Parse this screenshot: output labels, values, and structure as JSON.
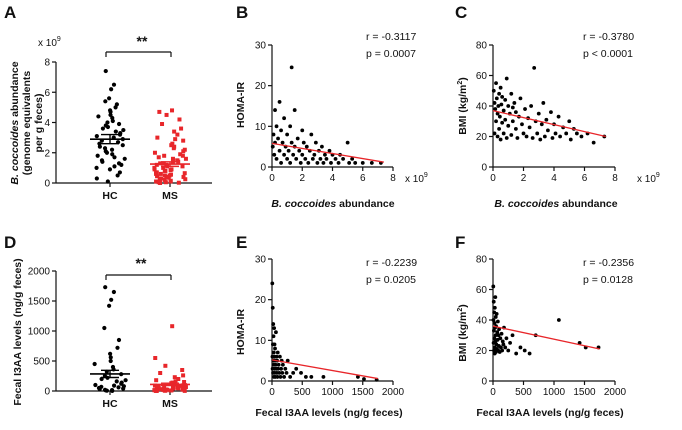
{
  "colors": {
    "hc": "#000000",
    "ms": "#e8262a",
    "fit": "#e8262a",
    "axis": "#111111"
  },
  "panels": {
    "A": {
      "letter": "A",
      "sig": "**",
      "exponent_base": "x 10",
      "exponent_power": "9",
      "ylabel_parts": [
        "B. coccoides",
        " abundance"
      ],
      "ylabel_line2": "(genome equivalents",
      "ylabel_line3": "per g feces)"
    },
    "B": {
      "letter": "B",
      "r": "r = -0.3117",
      "p": "p = 0.0007",
      "exponent_base": "x 10",
      "exponent_power": "9",
      "xlabel_parts": [
        "B. coccoides",
        " abundance"
      ],
      "ylabel": "HOMA-IR"
    },
    "C": {
      "letter": "C",
      "r": "r = -0.3780",
      "p": "p < 0.0001",
      "exponent_base": "x 10",
      "exponent_power": "9",
      "xlabel_parts": [
        "B. coccoides",
        " abundance"
      ],
      "ylabel_base": "BMI (kg/m",
      "ylabel_power": "2",
      "ylabel_end": ")"
    },
    "D": {
      "letter": "D",
      "sig": "**",
      "ylabel": "Fecal I3AA levels (ng/g feces)"
    },
    "E": {
      "letter": "E",
      "r": "r = -0.2239",
      "p": "p = 0.0205",
      "xlabel": "Fecal I3AA levels (ng/g feces)",
      "ylabel": "HOMA-IR"
    },
    "F": {
      "letter": "F",
      "r": "r = -0.2356",
      "p": "p = 0.0128",
      "xlabel": "Fecal I3AA levels (ng/g feces)",
      "ylabel_base": "BMI (kg/m",
      "ylabel_power": "2",
      "ylabel_end": ")"
    }
  },
  "chart_data": [
    {
      "id": "A",
      "type": "scatter",
      "categories": [
        "HC",
        "MS"
      ],
      "ylim": [
        0,
        8
      ],
      "yticks": [
        0,
        2,
        4,
        6,
        8
      ],
      "y_scale_note": "x 10^9",
      "ylabel": "B. coccoides abundance (genome equivalents per g feces)",
      "significance": "**",
      "series": [
        {
          "name": "HC",
          "mean": 2.9,
          "sem": 0.3,
          "values": [
            7.4,
            6.5,
            6.2,
            5.6,
            5.4,
            5.2,
            5.0,
            4.8,
            4.7,
            4.5,
            4.4,
            4.3,
            4.1,
            4.0,
            3.9,
            3.8,
            3.7,
            3.6,
            3.5,
            3.4,
            3.3,
            3.2,
            3.1,
            3.0,
            2.9,
            2.8,
            2.7,
            2.6,
            2.5,
            2.4,
            2.3,
            2.2,
            2.1,
            2.0,
            1.9,
            1.8,
            1.7,
            1.6,
            1.5,
            1.4,
            1.3,
            1.2,
            1.1,
            1.0,
            0.9,
            0.7,
            0.5,
            0.3,
            0.1
          ]
        },
        {
          "name": "MS",
          "mean": 1.25,
          "sem": 0.15,
          "values": [
            4.8,
            4.7,
            4.5,
            4.2,
            3.9,
            3.6,
            3.4,
            3.2,
            3.0,
            2.9,
            2.8,
            2.6,
            2.5,
            2.4,
            2.3,
            2.2,
            2.1,
            2.0,
            1.9,
            1.8,
            1.8,
            1.7,
            1.6,
            1.6,
            1.5,
            1.5,
            1.4,
            1.4,
            1.3,
            1.3,
            1.2,
            1.2,
            1.1,
            1.1,
            1.0,
            1.0,
            0.9,
            0.9,
            0.85,
            0.8,
            0.8,
            0.7,
            0.7,
            0.65,
            0.6,
            0.6,
            0.55,
            0.5,
            0.5,
            0.45,
            0.4,
            0.4,
            0.35,
            0.3,
            0.3,
            0.25,
            0.2,
            0.2,
            0.15,
            0.1,
            0.1,
            0.05,
            0.05,
            0.02,
            0.0
          ]
        }
      ]
    },
    {
      "id": "B",
      "type": "scatter",
      "xlabel": "B. coccoides abundance",
      "ylabel": "HOMA-IR",
      "xlim": [
        0,
        8
      ],
      "xticks": [
        0,
        2,
        4,
        6,
        8
      ],
      "x_scale_note": "x 10^9",
      "ylim": [
        0,
        30
      ],
      "yticks": [
        0,
        10,
        20,
        30
      ],
      "fit": {
        "x": [
          0,
          7.4
        ],
        "y": [
          5.8,
          1.2
        ]
      },
      "r": -0.3117,
      "p": 0.0007,
      "points": [
        [
          0.05,
          5
        ],
        [
          0.1,
          8
        ],
        [
          0.15,
          3
        ],
        [
          0.2,
          14
        ],
        [
          0.2,
          6
        ],
        [
          0.3,
          10
        ],
        [
          0.3,
          2
        ],
        [
          0.4,
          7
        ],
        [
          0.5,
          16
        ],
        [
          0.5,
          4
        ],
        [
          0.6,
          9
        ],
        [
          0.6,
          1
        ],
        [
          0.7,
          6
        ],
        [
          0.8,
          3
        ],
        [
          0.8,
          12
        ],
        [
          0.9,
          5
        ],
        [
          1.0,
          8
        ],
        [
          1.0,
          2
        ],
        [
          1.1,
          4
        ],
        [
          1.2,
          10
        ],
        [
          1.2,
          1
        ],
        [
          1.3,
          24.5
        ],
        [
          1.3,
          6
        ],
        [
          1.4,
          3
        ],
        [
          1.5,
          5
        ],
        [
          1.5,
          14
        ],
        [
          1.6,
          2
        ],
        [
          1.7,
          7
        ],
        [
          1.8,
          4
        ],
        [
          1.9,
          1
        ],
        [
          2.0,
          9
        ],
        [
          2.0,
          3
        ],
        [
          2.1,
          6
        ],
        [
          2.2,
          2
        ],
        [
          2.3,
          5
        ],
        [
          2.4,
          1
        ],
        [
          2.5,
          4
        ],
        [
          2.6,
          8
        ],
        [
          2.7,
          2
        ],
        [
          2.8,
          3
        ],
        [
          2.9,
          6
        ],
        [
          3.0,
          1
        ],
        [
          3.1,
          4
        ],
        [
          3.2,
          2
        ],
        [
          3.3,
          5
        ],
        [
          3.4,
          1
        ],
        [
          3.5,
          3
        ],
        [
          3.6,
          2
        ],
        [
          3.8,
          4
        ],
        [
          3.9,
          1
        ],
        [
          4.0,
          3
        ],
        [
          4.2,
          2
        ],
        [
          4.4,
          1
        ],
        [
          4.5,
          3
        ],
        [
          4.7,
          2
        ],
        [
          5.0,
          6
        ],
        [
          5.1,
          1
        ],
        [
          5.3,
          2
        ],
        [
          5.5,
          1
        ],
        [
          6.0,
          1
        ],
        [
          6.6,
          1
        ],
        [
          7.2,
          1
        ]
      ]
    },
    {
      "id": "C",
      "type": "scatter",
      "xlabel": "B. coccoides abundance",
      "ylabel": "BMI (kg/m2)",
      "xlim": [
        0,
        8
      ],
      "xticks": [
        0,
        2,
        4,
        6,
        8
      ],
      "x_scale_note": "x 10^9",
      "ylim": [
        0,
        80
      ],
      "yticks": [
        0,
        20,
        40,
        60,
        80
      ],
      "fit": {
        "x": [
          0,
          7.4
        ],
        "y": [
          37,
          20
        ]
      },
      "r": -0.378,
      "p": "< 0.0001",
      "points": [
        [
          0.05,
          50
        ],
        [
          0.1,
          42
        ],
        [
          0.1,
          22
        ],
        [
          0.15,
          38
        ],
        [
          0.2,
          55
        ],
        [
          0.2,
          30
        ],
        [
          0.25,
          45
        ],
        [
          0.3,
          35
        ],
        [
          0.3,
          20
        ],
        [
          0.35,
          40
        ],
        [
          0.4,
          48
        ],
        [
          0.4,
          25
        ],
        [
          0.45,
          33
        ],
        [
          0.5,
          52
        ],
        [
          0.5,
          18
        ],
        [
          0.55,
          41
        ],
        [
          0.6,
          29
        ],
        [
          0.6,
          46
        ],
        [
          0.7,
          37
        ],
        [
          0.7,
          22
        ],
        [
          0.8,
          44
        ],
        [
          0.8,
          31
        ],
        [
          0.9,
          58
        ],
        [
          0.9,
          19
        ],
        [
          1.0,
          40
        ],
        [
          1.0,
          27
        ],
        [
          1.1,
          35
        ],
        [
          1.2,
          48
        ],
        [
          1.2,
          21
        ],
        [
          1.3,
          39
        ],
        [
          1.3,
          30
        ],
        [
          1.4,
          42
        ],
        [
          1.5,
          25
        ],
        [
          1.5,
          36
        ],
        [
          1.6,
          19
        ],
        [
          1.7,
          33
        ],
        [
          1.8,
          45
        ],
        [
          1.9,
          28
        ],
        [
          2.0,
          22
        ],
        [
          2.1,
          38
        ],
        [
          2.2,
          20
        ],
        [
          2.3,
          32
        ],
        [
          2.4,
          26
        ],
        [
          2.5,
          40
        ],
        [
          2.6,
          19
        ],
        [
          2.7,
          65
        ],
        [
          2.8,
          30
        ],
        [
          2.9,
          22
        ],
        [
          3.0,
          35
        ],
        [
          3.1,
          18
        ],
        [
          3.2,
          28
        ],
        [
          3.3,
          42
        ],
        [
          3.4,
          20
        ],
        [
          3.5,
          31
        ],
        [
          3.6,
          24
        ],
        [
          3.8,
          36
        ],
        [
          3.9,
          19
        ],
        [
          4.0,
          28
        ],
        [
          4.1,
          22
        ],
        [
          4.3,
          33
        ],
        [
          4.4,
          20
        ],
        [
          4.6,
          26
        ],
        [
          4.8,
          22
        ],
        [
          5.0,
          30
        ],
        [
          5.1,
          18
        ],
        [
          5.3,
          25
        ],
        [
          5.5,
          22
        ],
        [
          5.8,
          20
        ],
        [
          6.2,
          22
        ],
        [
          6.6,
          16
        ],
        [
          7.3,
          20
        ]
      ]
    },
    {
      "id": "D",
      "type": "scatter",
      "categories": [
        "HC",
        "MS"
      ],
      "ylim": [
        0,
        2000
      ],
      "yticks": [
        0,
        500,
        1000,
        1500,
        2000
      ],
      "ylabel": "Fecal I3AA levels (ng/g feces)",
      "significance": "**",
      "series": [
        {
          "name": "HC",
          "mean": 285,
          "sem": 60,
          "values": [
            1730,
            1650,
            1520,
            1420,
            1050,
            850,
            720,
            620,
            560,
            500,
            450,
            400,
            360,
            320,
            280,
            250,
            220,
            200,
            180,
            160,
            140,
            120,
            100,
            90,
            80,
            70,
            60,
            50,
            40,
            30,
            20,
            15,
            10,
            5,
            2
          ]
        },
        {
          "name": "MS",
          "mean": 110,
          "sem": 20,
          "values": [
            1080,
            550,
            420,
            350,
            300,
            260,
            230,
            200,
            180,
            160,
            150,
            140,
            130,
            120,
            110,
            100,
            95,
            90,
            85,
            80,
            75,
            70,
            65,
            60,
            55,
            50,
            45,
            40,
            35,
            30,
            28,
            25,
            22,
            20,
            18,
            15,
            12,
            10,
            8,
            6,
            5,
            4,
            3,
            2,
            1
          ]
        }
      ]
    },
    {
      "id": "E",
      "type": "scatter",
      "xlabel": "Fecal I3AA levels (ng/g feces)",
      "ylabel": "HOMA-IR",
      "xlim": [
        0,
        2000
      ],
      "xticks": [
        0,
        500,
        1000,
        1500,
        2000
      ],
      "ylim": [
        0,
        30
      ],
      "yticks": [
        0,
        10,
        20,
        30
      ],
      "fit": {
        "x": [
          0,
          1750
        ],
        "y": [
          5.2,
          0.6
        ]
      },
      "r": -0.2239,
      "p": 0.0205,
      "points": [
        [
          5,
          24
        ],
        [
          8,
          6
        ],
        [
          10,
          3
        ],
        [
          12,
          18
        ],
        [
          15,
          9
        ],
        [
          18,
          2
        ],
        [
          20,
          14
        ],
        [
          22,
          5
        ],
        [
          25,
          11
        ],
        [
          28,
          4
        ],
        [
          30,
          7
        ],
        [
          32,
          1
        ],
        [
          35,
          13
        ],
        [
          38,
          6
        ],
        [
          40,
          3
        ],
        [
          42,
          9
        ],
        [
          45,
          2
        ],
        [
          48,
          5
        ],
        [
          50,
          8
        ],
        [
          55,
          1
        ],
        [
          60,
          4
        ],
        [
          65,
          12
        ],
        [
          70,
          3
        ],
        [
          75,
          6
        ],
        [
          80,
          2
        ],
        [
          85,
          5
        ],
        [
          90,
          1
        ],
        [
          95,
          7
        ],
        [
          100,
          3
        ],
        [
          110,
          4
        ],
        [
          120,
          2
        ],
        [
          130,
          6
        ],
        [
          140,
          1
        ],
        [
          150,
          3
        ],
        [
          160,
          5
        ],
        [
          170,
          2
        ],
        [
          180,
          4
        ],
        [
          200,
          1
        ],
        [
          220,
          3
        ],
        [
          240,
          2
        ],
        [
          260,
          5
        ],
        [
          300,
          1
        ],
        [
          350,
          2
        ],
        [
          400,
          3
        ],
        [
          480,
          2
        ],
        [
          560,
          1
        ],
        [
          650,
          1
        ],
        [
          850,
          1
        ],
        [
          1420,
          1
        ],
        [
          1520,
          0.5
        ],
        [
          1730,
          0.3
        ]
      ]
    },
    {
      "id": "F",
      "type": "scatter",
      "xlabel": "Fecal I3AA levels (ng/g feces)",
      "ylabel": "BMI (kg/m2)",
      "xlim": [
        0,
        2000
      ],
      "xticks": [
        0,
        500,
        1000,
        1500,
        2000
      ],
      "ylim": [
        0,
        80
      ],
      "yticks": [
        0,
        20,
        40,
        60,
        80
      ],
      "fit": {
        "x": [
          0,
          1750
        ],
        "y": [
          36,
          21
        ]
      },
      "r": -0.2356,
      "p": 0.0128,
      "points": [
        [
          5,
          62
        ],
        [
          8,
          40
        ],
        [
          10,
          25
        ],
        [
          12,
          52
        ],
        [
          15,
          33
        ],
        [
          18,
          20
        ],
        [
          20,
          45
        ],
        [
          22,
          28
        ],
        [
          25,
          38
        ],
        [
          28,
          18
        ],
        [
          30,
          48
        ],
        [
          32,
          22
        ],
        [
          35,
          35
        ],
        [
          38,
          55
        ],
        [
          40,
          26
        ],
        [
          42,
          30
        ],
        [
          45,
          42
        ],
        [
          48,
          19
        ],
        [
          50,
          36
        ],
        [
          55,
          24
        ],
        [
          60,
          44
        ],
        [
          65,
          21
        ],
        [
          70,
          32
        ],
        [
          75,
          27
        ],
        [
          80,
          39
        ],
        [
          85,
          20
        ],
        [
          90,
          30
        ],
        [
          95,
          23
        ],
        [
          100,
          34
        ],
        [
          110,
          19
        ],
        [
          120,
          28
        ],
        [
          130,
          22
        ],
        [
          140,
          31
        ],
        [
          150,
          20
        ],
        [
          160,
          26
        ],
        [
          170,
          24
        ],
        [
          180,
          35
        ],
        [
          200,
          22
        ],
        [
          220,
          28
        ],
        [
          250,
          20
        ],
        [
          280,
          25
        ],
        [
          320,
          30
        ],
        [
          380,
          18
        ],
        [
          450,
          22
        ],
        [
          520,
          20
        ],
        [
          600,
          18
        ],
        [
          700,
          30
        ],
        [
          1080,
          40
        ],
        [
          1420,
          25
        ],
        [
          1520,
          22
        ],
        [
          1730,
          22
        ]
      ]
    }
  ]
}
